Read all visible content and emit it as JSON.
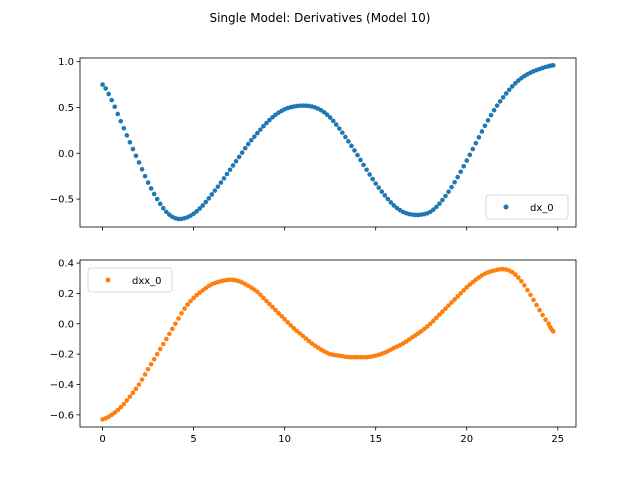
{
  "figure": {
    "suptitle": "Single Model: Derivatives (Model 10)"
  },
  "chart_data": [
    {
      "type": "scatter",
      "title": "",
      "xlabel": "",
      "ylabel": "",
      "xlim": [
        -1.24,
        26.0
      ],
      "ylim": [
        -0.805,
        1.04
      ],
      "xticks": [
        0,
        5,
        10,
        15,
        20,
        25
      ],
      "show_xtick_labels": false,
      "yticks": [
        -0.5,
        0.0,
        0.5,
        1.0
      ],
      "ytick_labels": [
        "−0.5",
        "0.0",
        "0.5",
        "1.0"
      ],
      "legend_position": "lower-right",
      "grid": false,
      "series": [
        {
          "name": "dx_0",
          "color": "#1f77b4",
          "marker": "circle",
          "x": [
            0.0,
            0.5,
            1.0,
            1.5,
            2.0,
            2.5,
            3.0,
            3.5,
            4.0,
            4.5,
            5.0,
            5.5,
            6.0,
            6.5,
            7.0,
            7.5,
            8.0,
            8.5,
            9.0,
            9.5,
            10.0,
            10.5,
            11.0,
            11.5,
            12.0,
            12.5,
            13.0,
            13.5,
            14.0,
            14.5,
            15.0,
            15.5,
            16.0,
            16.5,
            17.0,
            17.5,
            18.0,
            18.5,
            19.0,
            19.5,
            20.0,
            20.5,
            21.0,
            21.5,
            22.0,
            22.5,
            23.0,
            23.5,
            24.0,
            24.5,
            24.75
          ],
          "y": [
            0.75,
            0.58,
            0.35,
            0.12,
            -0.1,
            -0.32,
            -0.5,
            -0.64,
            -0.71,
            -0.71,
            -0.66,
            -0.57,
            -0.45,
            -0.32,
            -0.18,
            -0.04,
            0.1,
            0.22,
            0.33,
            0.42,
            0.48,
            0.51,
            0.52,
            0.51,
            0.47,
            0.39,
            0.27,
            0.13,
            -0.02,
            -0.18,
            -0.33,
            -0.46,
            -0.57,
            -0.64,
            -0.67,
            -0.67,
            -0.64,
            -0.55,
            -0.42,
            -0.26,
            -0.08,
            0.11,
            0.3,
            0.47,
            0.61,
            0.73,
            0.82,
            0.88,
            0.92,
            0.95,
            0.96
          ]
        }
      ]
    },
    {
      "type": "scatter",
      "title": "",
      "xlabel": "",
      "ylabel": "",
      "xlim": [
        -1.24,
        26.0
      ],
      "ylim": [
        -0.68,
        0.42
      ],
      "xticks": [
        0,
        5,
        10,
        15,
        20,
        25
      ],
      "xtick_labels": [
        "0",
        "5",
        "10",
        "15",
        "20",
        "25"
      ],
      "yticks": [
        -0.6,
        -0.4,
        -0.2,
        0.0,
        0.2,
        0.4
      ],
      "ytick_labels": [
        "−0.6",
        "−0.4",
        "−0.2",
        "0.0",
        "0.2",
        "0.4"
      ],
      "legend_position": "upper-left",
      "grid": false,
      "series": [
        {
          "name": "dxx_0",
          "color": "#ff7f0e",
          "marker": "circle",
          "x": [
            0.0,
            0.5,
            1.0,
            1.5,
            2.0,
            2.5,
            3.0,
            3.5,
            4.0,
            4.5,
            5.0,
            5.5,
            6.0,
            6.5,
            7.0,
            7.5,
            8.0,
            8.5,
            9.0,
            9.5,
            10.0,
            10.5,
            11.0,
            11.5,
            12.0,
            12.5,
            13.0,
            13.5,
            14.0,
            14.5,
            15.0,
            15.5,
            16.0,
            16.5,
            17.0,
            17.5,
            18.0,
            18.5,
            19.0,
            19.5,
            20.0,
            20.5,
            21.0,
            21.5,
            22.0,
            22.5,
            23.0,
            23.5,
            24.0,
            24.5,
            24.75
          ],
          "y": [
            -0.63,
            -0.6,
            -0.55,
            -0.48,
            -0.4,
            -0.3,
            -0.2,
            -0.1,
            0.0,
            0.1,
            0.17,
            0.22,
            0.26,
            0.28,
            0.29,
            0.28,
            0.25,
            0.21,
            0.15,
            0.09,
            0.03,
            -0.03,
            -0.08,
            -0.13,
            -0.17,
            -0.2,
            -0.21,
            -0.22,
            -0.22,
            -0.22,
            -0.21,
            -0.19,
            -0.16,
            -0.13,
            -0.09,
            -0.05,
            0.0,
            0.06,
            0.12,
            0.18,
            0.24,
            0.29,
            0.33,
            0.35,
            0.36,
            0.34,
            0.28,
            0.19,
            0.09,
            0.0,
            -0.05
          ]
        }
      ]
    }
  ]
}
